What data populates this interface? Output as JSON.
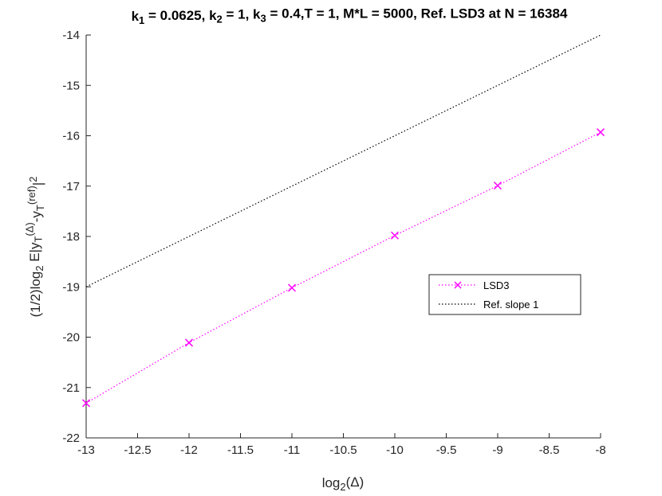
{
  "chart_data": {
    "type": "line",
    "title": {
      "parts": [
        {
          "t": "k"
        },
        {
          "t": "1",
          "sub": true
        },
        {
          "t": " = 0.0625, k"
        },
        {
          "t": "2",
          "sub": true
        },
        {
          "t": " = 1, k"
        },
        {
          "t": "3",
          "sub": true
        },
        {
          "t": " = 0.4,T = 1, M*L  = 5000, Ref. LSD3 at N = 16384"
        }
      ]
    },
    "xlabel": {
      "parts": [
        {
          "t": "log"
        },
        {
          "t": "2",
          "sub": true
        },
        {
          "t": "(Δ)"
        }
      ]
    },
    "ylabel": {
      "parts": [
        {
          "t": "(1/2)log"
        },
        {
          "t": "2",
          "sub": true
        },
        {
          "t": " E|y"
        },
        {
          "t": "T",
          "sub": true
        },
        {
          "t": "(Δ)",
          "sup": true
        },
        {
          "t": "-y"
        },
        {
          "t": "T",
          "sub": true
        },
        {
          "t": "(ref)",
          "sup": true
        },
        {
          "t": "|"
        },
        {
          "t": "2",
          "sup": true
        }
      ]
    },
    "xlim": [
      -13,
      -8
    ],
    "ylim": [
      -22,
      -14
    ],
    "xticks": [
      -13,
      -12.5,
      -12,
      -11.5,
      -11,
      -10.5,
      -10,
      -9.5,
      -9,
      -8.5,
      -8
    ],
    "yticks": [
      -22,
      -21,
      -20,
      -19,
      -18,
      -17,
      -16,
      -15,
      -14
    ],
    "xtick_labels": [
      "-13",
      "-12.5",
      "-12",
      "-11.5",
      "-11",
      "-10.5",
      "-10",
      "-9.5",
      "-9",
      "-8.5",
      "-8"
    ],
    "ytick_labels": [
      "-22",
      "-21",
      "-20",
      "-19",
      "-18",
      "-17",
      "-16",
      "-15",
      "-14"
    ],
    "grid": false,
    "legend_position": "center-right",
    "series": [
      {
        "name": "LSD3",
        "color": "#ff00ff",
        "marker": "x",
        "line_style": "dotted",
        "x": [
          -13,
          -12,
          -11,
          -10,
          -9,
          -8
        ],
        "y": [
          -21.31,
          -20.11,
          -19.02,
          -17.98,
          -16.99,
          -15.93
        ]
      },
      {
        "name": "Ref. slope 1",
        "color": "#000000",
        "marker": "none",
        "line_style": "dotted",
        "x": [
          -13,
          -8
        ],
        "y": [
          -19,
          -14
        ]
      }
    ]
  }
}
